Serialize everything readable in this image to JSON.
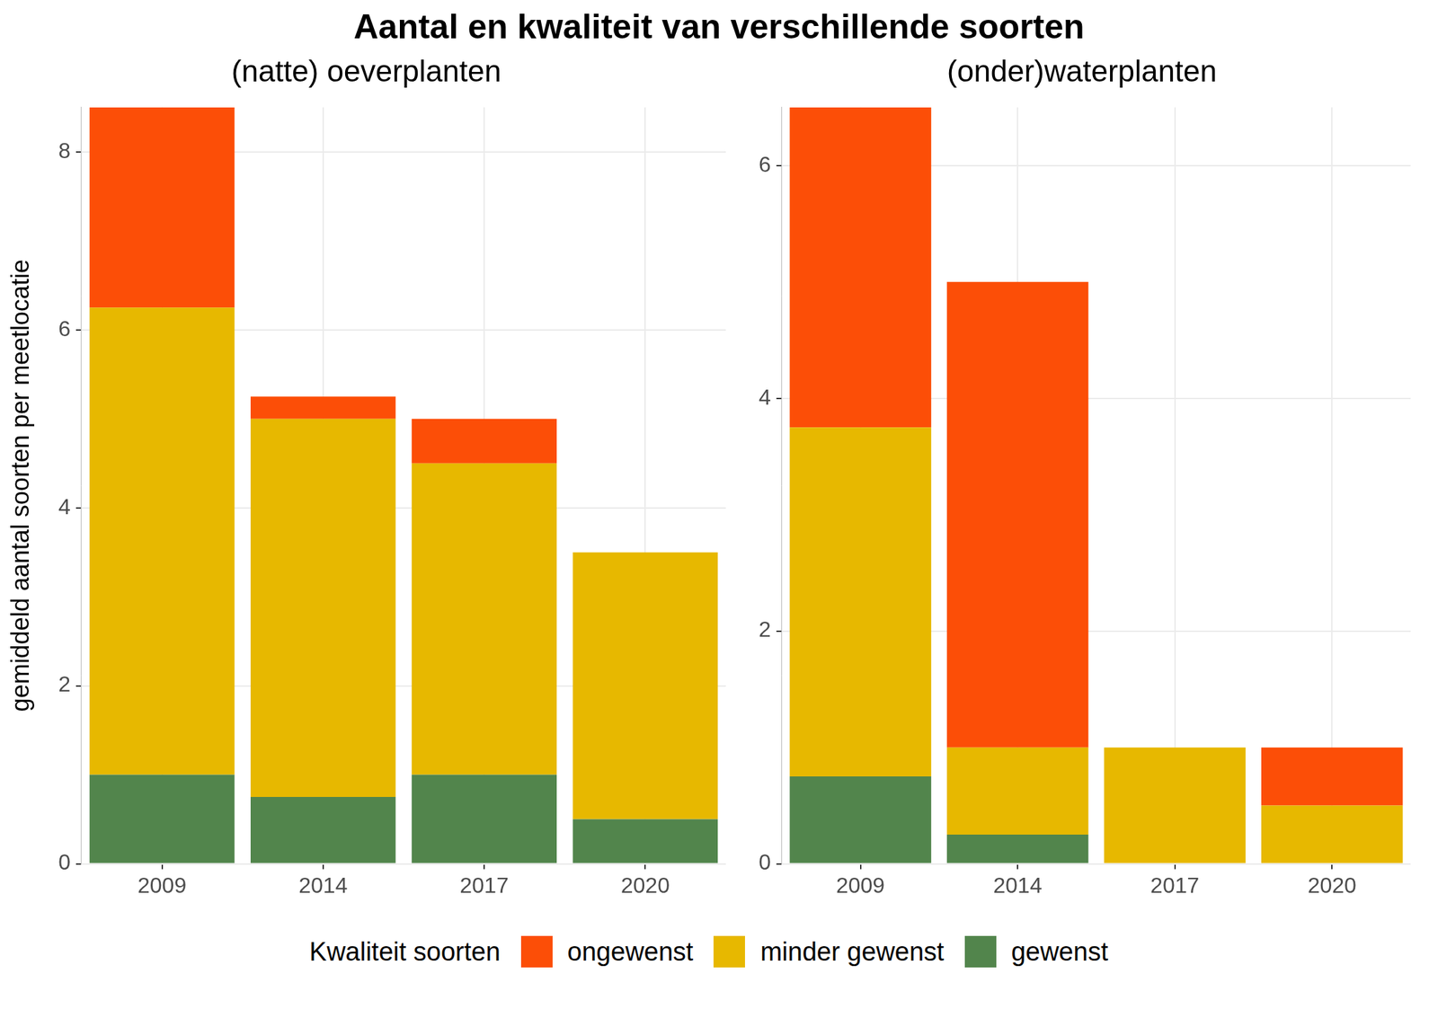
{
  "title": "Aantal en kwaliteit van verschillende soorten",
  "legend_title": "Kwaliteit soorten",
  "chart_data": [
    {
      "type": "bar",
      "title": "(natte) oeverplanten",
      "ylabel": "gemiddeld aantal soorten per meetlocatie",
      "categories": [
        "2009",
        "2014",
        "2017",
        "2020"
      ],
      "series": [
        {
          "name": "ongewenst",
          "color": "#FC4E07",
          "values": [
            2.25,
            0.25,
            0.5,
            0
          ]
        },
        {
          "name": "minder gewenst",
          "color": "#E7B800",
          "values": [
            5.25,
            4.25,
            3.5,
            3
          ]
        },
        {
          "name": "gewenst",
          "color": "#52854C",
          "values": [
            1,
            0.75,
            1,
            0.5
          ]
        }
      ],
      "ylim": [
        0,
        8.5
      ],
      "yticks": [
        0,
        2,
        4,
        6,
        8
      ],
      "stacked": true,
      "grid": true,
      "legend": "bottom"
    },
    {
      "type": "bar",
      "title": "(onder)waterplanten",
      "categories": [
        "2009",
        "2014",
        "2017",
        "2020"
      ],
      "series": [
        {
          "name": "ongewenst",
          "color": "#FC4E07",
          "values": [
            2.75,
            4,
            0,
            0.5
          ]
        },
        {
          "name": "minder gewenst",
          "color": "#E7B800",
          "values": [
            3,
            0.75,
            1,
            0.5
          ]
        },
        {
          "name": "gewenst",
          "color": "#52854C",
          "values": [
            0.75,
            0.25,
            0,
            0
          ]
        }
      ],
      "ylim": [
        0,
        6.5
      ],
      "yticks": [
        0,
        2,
        4,
        6
      ],
      "stacked": true,
      "grid": true,
      "legend": "bottom"
    }
  ]
}
